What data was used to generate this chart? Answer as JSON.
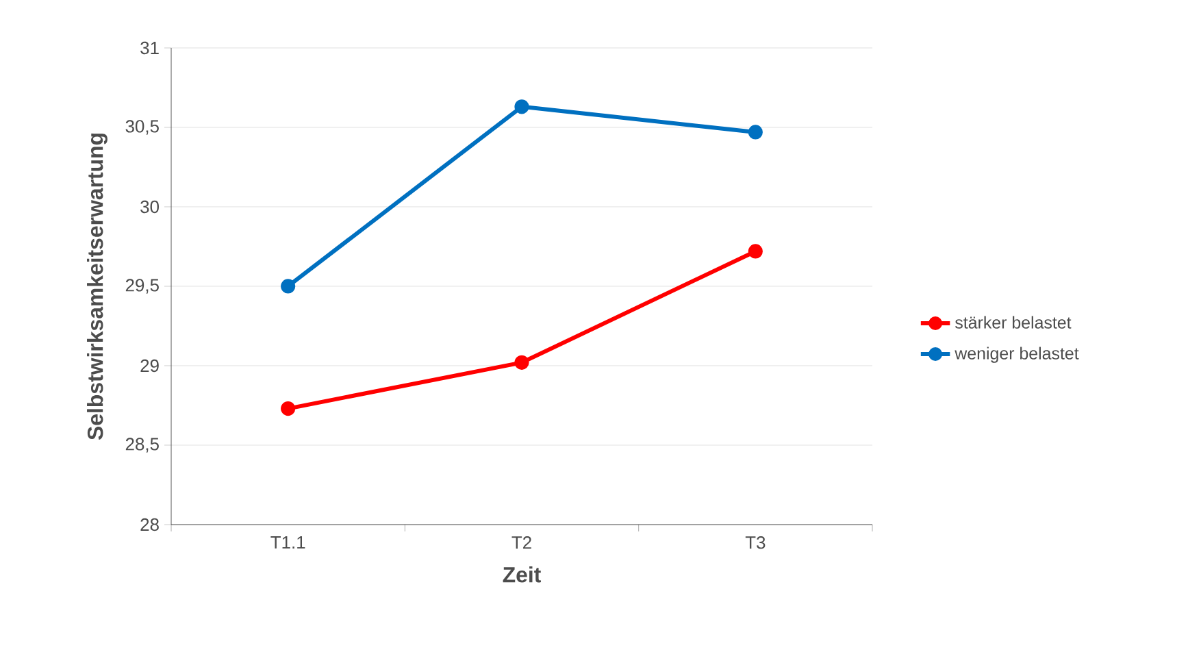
{
  "chart_data": {
    "type": "line",
    "xlabel": "Zeit",
    "ylabel": "Selbstwirksamkeitserwartung",
    "categories": [
      "T1.1",
      "T2",
      "T3"
    ],
    "series": [
      {
        "name": "stärker belastet",
        "color": "#ff0000",
        "values": [
          28.73,
          29.02,
          29.72
        ]
      },
      {
        "name": "weniger belastet",
        "color": "#0070c0",
        "values": [
          29.5,
          30.63,
          30.47
        ]
      }
    ],
    "ylim": [
      28,
      31
    ],
    "yticks": [
      28,
      {
        "value": 28.5,
        "label": "28,5"
      },
      29,
      {
        "value": 29.5,
        "label": "29,5"
      },
      30,
      {
        "value": 30.5,
        "label": "30,5"
      },
      31
    ],
    "grid": "y",
    "legend": "right",
    "marker": "circle",
    "line_style": "solid"
  }
}
